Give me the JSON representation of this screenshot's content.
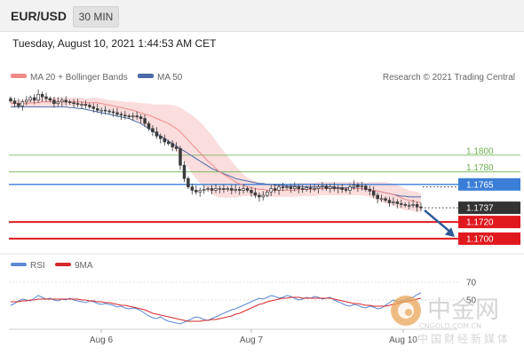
{
  "header": {
    "symbol": "EUR/USD",
    "timeframe": "30 MIN",
    "datetime": "Tuesday, August 10, 2021 1:44:53 AM CET"
  },
  "legend": {
    "ma20": "MA 20 + Bollinger Bands",
    "ma50": "MA 50",
    "credit": "Research © 2021 Trading Central"
  },
  "rsi_legend": {
    "rsi": "RSI",
    "ma9": "9MA"
  },
  "watermark": {
    "brand": "中金网",
    "url": "CNGOLD.COM.CN",
    "tagline": "中国财经新媒体"
  },
  "colors": {
    "candle": "#3a3a3a",
    "bollinger_band": "#f9d7d7",
    "ma20": "#f08a8a",
    "ma50": "#4a6aa8",
    "green_level": "#6ab04c",
    "blue_level": "#3a7ed8",
    "red_level": "#e0191f",
    "last_price": "#333333",
    "arrow": "#2f5b9a",
    "rsi": "#5b8ad6",
    "rsi_ma": "#d6282b"
  },
  "chart_data": [
    {
      "type": "candlestick",
      "x_ticks": [
        "Aug 6",
        "Aug 7",
        "Aug 10"
      ],
      "ylim": [
        1.1685,
        1.1885
      ],
      "levels": [
        {
          "value": 1.18,
          "label": "1.1800",
          "style": "green"
        },
        {
          "value": 1.178,
          "label": "1.1780",
          "style": "green"
        },
        {
          "value": 1.1765,
          "label": "1.1765",
          "style": "blue"
        },
        {
          "value": 1.172,
          "label": "1.1720",
          "style": "red"
        },
        {
          "value": 1.17,
          "label": "1.1700",
          "style": "red"
        }
      ],
      "last_price": {
        "value": 1.1737,
        "label": "1.1737"
      },
      "forecast_arrow": {
        "from": 1.1734,
        "to": 1.1702,
        "direction": "down"
      },
      "closes": [
        1.1865,
        1.1862,
        1.1859,
        1.1864,
        1.1866,
        1.1869,
        1.1866,
        1.1873,
        1.187,
        1.1868,
        1.1866,
        1.1862,
        1.1864,
        1.1866,
        1.1864,
        1.1863,
        1.1862,
        1.1861,
        1.1861,
        1.186,
        1.1858,
        1.1856,
        1.1854,
        1.1854,
        1.1853,
        1.1852,
        1.1851,
        1.1849,
        1.1848,
        1.1847,
        1.1846,
        1.1847,
        1.1846,
        1.1844,
        1.1838,
        1.1832,
        1.1828,
        1.1823,
        1.182,
        1.1816,
        1.1814,
        1.181,
        1.1808,
        1.1788,
        1.1772,
        1.1762,
        1.1758,
        1.1756,
        1.1758,
        1.1759,
        1.176,
        1.1758,
        1.176,
        1.176,
        1.1759,
        1.176,
        1.1758,
        1.1759,
        1.1758,
        1.176,
        1.1758,
        1.1755,
        1.1752,
        1.175,
        1.1752,
        1.1756,
        1.176,
        1.1758,
        1.1762,
        1.1761,
        1.1762,
        1.176,
        1.1762,
        1.176,
        1.1759,
        1.1761,
        1.176,
        1.176,
        1.1762,
        1.1763,
        1.176,
        1.1762,
        1.176,
        1.1761,
        1.1759,
        1.1758,
        1.1762,
        1.1764,
        1.1762,
        1.1763,
        1.1759,
        1.1757,
        1.1752,
        1.1748,
        1.1748,
        1.1746,
        1.1743,
        1.1744,
        1.1742,
        1.1741,
        1.174,
        1.174,
        1.1741,
        1.1738,
        1.1737
      ],
      "ma20": [
        1.1862,
        1.1862,
        1.1862,
        1.1862,
        1.1862,
        1.1863,
        1.1863,
        1.1863,
        1.1864,
        1.1864,
        1.1864,
        1.1864,
        1.1864,
        1.1864,
        1.1864,
        1.1864,
        1.1864,
        1.1864,
        1.1864,
        1.1863,
        1.1863,
        1.1863,
        1.1863,
        1.1862,
        1.1861,
        1.186,
        1.1859,
        1.1858,
        1.1857,
        1.1856,
        1.1855,
        1.1854,
        1.1852,
        1.1851,
        1.1849,
        1.1848,
        1.1846,
        1.1844,
        1.1842,
        1.184,
        1.1838,
        1.1835,
        1.1832,
        1.1828,
        1.1823,
        1.1818,
        1.1813,
        1.1808,
        1.1803,
        1.1798,
        1.1793,
        1.1789,
        1.1784,
        1.178,
        1.1777,
        1.1774,
        1.1771,
        1.1768,
        1.1766,
        1.1764,
        1.1762,
        1.1761,
        1.176,
        1.1759,
        1.1759,
        1.1758,
        1.1758,
        1.1758,
        1.1758,
        1.1758,
        1.1758,
        1.1758,
        1.1758,
        1.1759,
        1.1759,
        1.1759,
        1.1759,
        1.1759,
        1.176,
        1.176,
        1.176,
        1.176,
        1.176,
        1.176,
        1.176,
        1.176,
        1.176,
        1.176,
        1.176,
        1.176,
        1.1759,
        1.1759,
        1.1758,
        1.1757,
        1.1756,
        1.1755,
        1.1754,
        1.1753,
        1.1751,
        1.1749,
        1.1747,
        1.1746,
        1.1745,
        1.1744,
        1.1743
      ],
      "ma50": [
        1.1858,
        1.1858,
        1.1858,
        1.1858,
        1.1858,
        1.1858,
        1.1858,
        1.1858,
        1.1858,
        1.1858,
        1.1858,
        1.1858,
        1.1858,
        1.1858,
        1.1858,
        1.1857,
        1.1857,
        1.1856,
        1.1856,
        1.1855,
        1.1854,
        1.1853,
        1.1852,
        1.1851,
        1.185,
        1.1849,
        1.1848,
        1.1847,
        1.1846,
        1.1845,
        1.1844,
        1.1842,
        1.184,
        1.1838,
        1.1835,
        1.1832,
        1.1829,
        1.1826,
        1.1823,
        1.182,
        1.1817,
        1.1814,
        1.1811,
        1.1808,
        1.1805,
        1.1802,
        1.1799,
        1.1796,
        1.1793,
        1.179,
        1.1787,
        1.1784,
        1.1782,
        1.178,
        1.1778,
        1.1776,
        1.1774,
        1.1772,
        1.1771,
        1.177,
        1.1769,
        1.1768,
        1.1767,
        1.1766,
        1.1766,
        1.1765,
        1.1765,
        1.1764,
        1.1764,
        1.1764,
        1.1763,
        1.1763,
        1.1763,
        1.1763,
        1.1762,
        1.1762,
        1.1762,
        1.1762,
        1.1762,
        1.1762,
        1.1762,
        1.1762,
        1.1762,
        1.1761,
        1.1761,
        1.1761,
        1.1761,
        1.1761,
        1.176,
        1.176,
        1.1759,
        1.1759,
        1.1758,
        1.1757,
        1.1756,
        1.1755,
        1.1754,
        1.1753,
        1.1752,
        1.1751,
        1.1751,
        1.175,
        1.175,
        1.175,
        1.175
      ],
      "band_halfwidth": [
        0.0004,
        0.0004,
        0.0004,
        0.0004,
        0.0004,
        0.0005,
        0.0005,
        0.0005,
        0.0005,
        0.0005,
        0.0005,
        0.0005,
        0.0005,
        0.0005,
        0.0005,
        0.0005,
        0.0005,
        0.0005,
        0.0005,
        0.0005,
        0.0005,
        0.0006,
        0.0006,
        0.0006,
        0.0006,
        0.0006,
        0.0007,
        0.0007,
        0.0008,
        0.0008,
        0.0009,
        0.001,
        0.0011,
        0.0012,
        0.0013,
        0.0014,
        0.0015,
        0.0017,
        0.0019,
        0.0021,
        0.0023,
        0.0025,
        0.0027,
        0.0029,
        0.0031,
        0.0033,
        0.0035,
        0.0036,
        0.0037,
        0.0037,
        0.0036,
        0.0035,
        0.0033,
        0.0031,
        0.0028,
        0.0025,
        0.0022,
        0.0019,
        0.0016,
        0.0013,
        0.0011,
        0.001,
        0.0009,
        0.0008,
        0.0008,
        0.0008,
        0.0008,
        0.0008,
        0.0008,
        0.0008,
        0.0008,
        0.0008,
        0.0008,
        0.0008,
        0.0008,
        0.0008,
        0.0008,
        0.0008,
        0.0008,
        0.0008,
        0.0008,
        0.0008,
        0.0008,
        0.0008,
        0.0008,
        0.0008,
        0.0008,
        0.0008,
        0.0008,
        0.0008,
        0.0008,
        0.0009,
        0.001,
        0.0011,
        0.0012,
        0.0013,
        0.0013,
        0.0013,
        0.0013,
        0.0013,
        0.0013,
        0.0012,
        0.0012,
        0.0012,
        0.0011
      ]
    },
    {
      "type": "line",
      "ylim": [
        20,
        80
      ],
      "level_ticks": [
        {
          "value": 70,
          "label": "70"
        },
        {
          "value": 50,
          "label": "50"
        }
      ],
      "series": [
        {
          "name": "RSI",
          "values": [
            44,
            46,
            49,
            51,
            50,
            49,
            52,
            55,
            53,
            51,
            52,
            50,
            49,
            51,
            50,
            52,
            50,
            49,
            48,
            47,
            49,
            48,
            46,
            45,
            46,
            45,
            44,
            42,
            43,
            41,
            40,
            41,
            40,
            38,
            35,
            32,
            30,
            29,
            31,
            28,
            26,
            25,
            24,
            23,
            25,
            27,
            29,
            31,
            30,
            28,
            27,
            29,
            31,
            33,
            35,
            37,
            39,
            40,
            42,
            44,
            46,
            48,
            50,
            52,
            51,
            53,
            55,
            54,
            52,
            53,
            55,
            54,
            52,
            50,
            51,
            53,
            52,
            54,
            53,
            51,
            52,
            53,
            50,
            48,
            46,
            44,
            43,
            45,
            44,
            42,
            41,
            43,
            42,
            40,
            41,
            44,
            47,
            50,
            48,
            49,
            50,
            52,
            53,
            56,
            58
          ]
        },
        {
          "name": "9MA",
          "values": [
            48,
            48,
            48,
            49,
            49,
            50,
            50,
            51,
            51,
            51,
            51,
            51,
            51,
            51,
            51,
            51,
            51,
            51,
            50,
            50,
            49,
            49,
            48,
            48,
            47,
            47,
            46,
            45,
            44,
            44,
            43,
            42,
            41,
            40,
            39,
            37,
            35,
            34,
            33,
            32,
            31,
            30,
            29,
            28,
            27,
            26,
            26,
            26,
            26,
            27,
            27,
            28,
            28,
            29,
            30,
            31,
            32,
            34,
            35,
            37,
            39,
            41,
            43,
            45,
            46,
            48,
            49,
            50,
            51,
            52,
            52,
            53,
            53,
            53,
            52,
            52,
            52,
            52,
            52,
            52,
            52,
            52,
            51,
            50,
            49,
            48,
            47,
            46,
            46,
            45,
            44,
            44,
            43,
            43,
            43,
            43,
            44,
            45,
            46,
            47,
            48,
            49,
            50,
            51,
            52
          ]
        }
      ]
    }
  ]
}
